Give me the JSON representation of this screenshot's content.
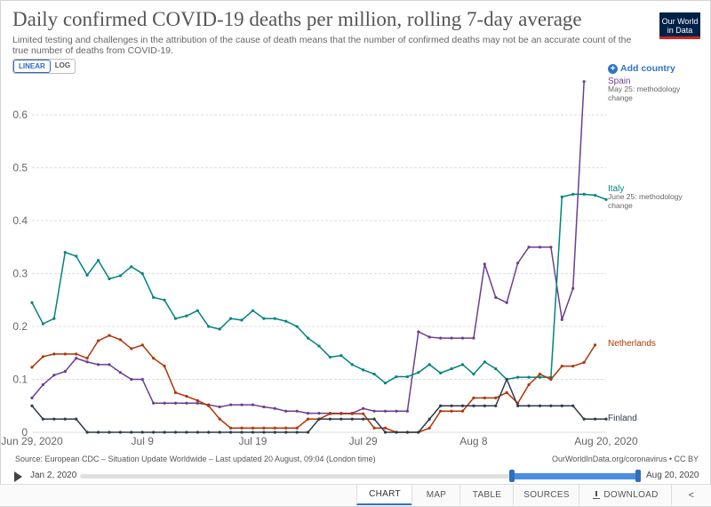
{
  "header": {
    "title": "Daily confirmed COVID-19 deaths per million, rolling 7-day average",
    "subtitle": "Limited testing and challenges in the attribution of the cause of death means that the number of confirmed deaths may not be an accurate count of the true number of deaths from COVID-19.",
    "logo_line1": "Our World",
    "logo_line2": "in Data"
  },
  "controls": {
    "linear_label": "LINEAR",
    "log_label": "LOG",
    "add_country_label": "Add country"
  },
  "colors": {
    "Spain": "#6d3e91",
    "Italy": "#00847e",
    "Netherlands": "#b13507",
    "Finland": "#2d3a4b",
    "grid": "#dddddd"
  },
  "annotations": {
    "Spain": "May 25: methodology change",
    "Italy": "June 25: methodology change"
  },
  "chart_data": {
    "type": "line",
    "title": "Daily confirmed COVID-19 deaths per million, rolling 7-day average",
    "x_range": [
      "Jun 29, 2020",
      "Aug 20, 2020"
    ],
    "x_ticks": [
      "Jun 29, 2020",
      "Jul 9",
      "Jul 19",
      "Jul 29",
      "Aug 8",
      "Aug 20, 2020"
    ],
    "x_tick_days": [
      0,
      10,
      20,
      30,
      40,
      52
    ],
    "y_ticks": [
      0,
      0.1,
      0.2,
      0.3,
      0.4,
      0.5,
      0.6
    ],
    "y_tick_labels": [
      "0",
      "0.1",
      "0.2",
      "0.3",
      "0.4",
      "0.5",
      "0.6"
    ],
    "ylim": [
      0,
      0.67
    ],
    "grid": true,
    "legend": "right, labels at line ends",
    "series": [
      {
        "name": "Spain",
        "values": [
          0.065,
          0.09,
          0.108,
          0.115,
          0.14,
          0.133,
          0.128,
          0.128,
          0.113,
          0.1,
          0.1,
          0.055,
          0.055,
          0.055,
          0.055,
          0.055,
          0.052,
          0.048,
          0.052,
          0.052,
          0.052,
          0.048,
          0.045,
          0.04,
          0.04,
          0.036,
          0.036,
          0.036,
          0.036,
          0.036,
          0.045,
          0.04,
          0.04,
          0.04,
          0.04,
          0.19,
          0.18,
          0.178,
          0.178,
          0.178,
          0.178,
          0.318,
          0.255,
          0.245,
          0.32,
          0.35,
          0.35,
          0.35,
          0.213,
          0.272,
          0.663
        ]
      },
      {
        "name": "Italy",
        "values": [
          0.245,
          0.205,
          0.215,
          0.34,
          0.333,
          0.297,
          0.325,
          0.29,
          0.296,
          0.313,
          0.3,
          0.255,
          0.25,
          0.215,
          0.22,
          0.23,
          0.2,
          0.195,
          0.215,
          0.212,
          0.23,
          0.215,
          0.215,
          0.21,
          0.2,
          0.178,
          0.163,
          0.142,
          0.145,
          0.128,
          0.118,
          0.11,
          0.093,
          0.105,
          0.105,
          0.113,
          0.128,
          0.112,
          0.12,
          0.128,
          0.11,
          0.133,
          0.12,
          0.1,
          0.104,
          0.104,
          0.104,
          0.104,
          0.445,
          0.45,
          0.45,
          0.448,
          0.44
        ]
      },
      {
        "name": "Netherlands",
        "values": [
          0.123,
          0.143,
          0.148,
          0.148,
          0.148,
          0.14,
          0.173,
          0.183,
          0.175,
          0.158,
          0.165,
          0.14,
          0.125,
          0.075,
          0.068,
          0.06,
          0.05,
          0.025,
          0.008,
          0.008,
          0.008,
          0.008,
          0.008,
          0.008,
          0.008,
          0.025,
          0.025,
          0.035,
          0.035,
          0.035,
          0.035,
          0.008,
          0.008,
          0.0,
          0.0,
          0.0,
          0.008,
          0.04,
          0.04,
          0.04,
          0.065,
          0.065,
          0.065,
          0.075,
          0.055,
          0.09,
          0.11,
          0.1,
          0.125,
          0.125,
          0.132,
          0.165
        ]
      },
      {
        "name": "Finland",
        "values": [
          0.05,
          0.025,
          0.025,
          0.025,
          0.025,
          0.0,
          0.0,
          0.0,
          0.0,
          0.0,
          0.0,
          0.0,
          0.0,
          0.0,
          0.0,
          0.0,
          0.0,
          0.0,
          0.0,
          0.0,
          0.0,
          0.0,
          0.0,
          0.0,
          0.0,
          0.0,
          0.025,
          0.025,
          0.025,
          0.025,
          0.025,
          0.025,
          0.0,
          0.0,
          0.0,
          0.0,
          0.025,
          0.05,
          0.05,
          0.05,
          0.05,
          0.05,
          0.05,
          0.1,
          0.05,
          0.05,
          0.05,
          0.05,
          0.05,
          0.05,
          0.025,
          0.025,
          0.025
        ]
      }
    ]
  },
  "footer": {
    "source": "Source: European CDC – Situation Update Worldwide – Last updated 20 August, 09:04 (London time)",
    "site": "OurWorldInData.org/coronavirus • CC BY"
  },
  "timeline": {
    "start_label": "Jan 2, 2020",
    "end_label": "Aug 20, 2020"
  },
  "tabs": {
    "chart": "CHART",
    "map": "MAP",
    "table": "TABLE",
    "sources": "SOURCES",
    "download": "DOWNLOAD"
  }
}
